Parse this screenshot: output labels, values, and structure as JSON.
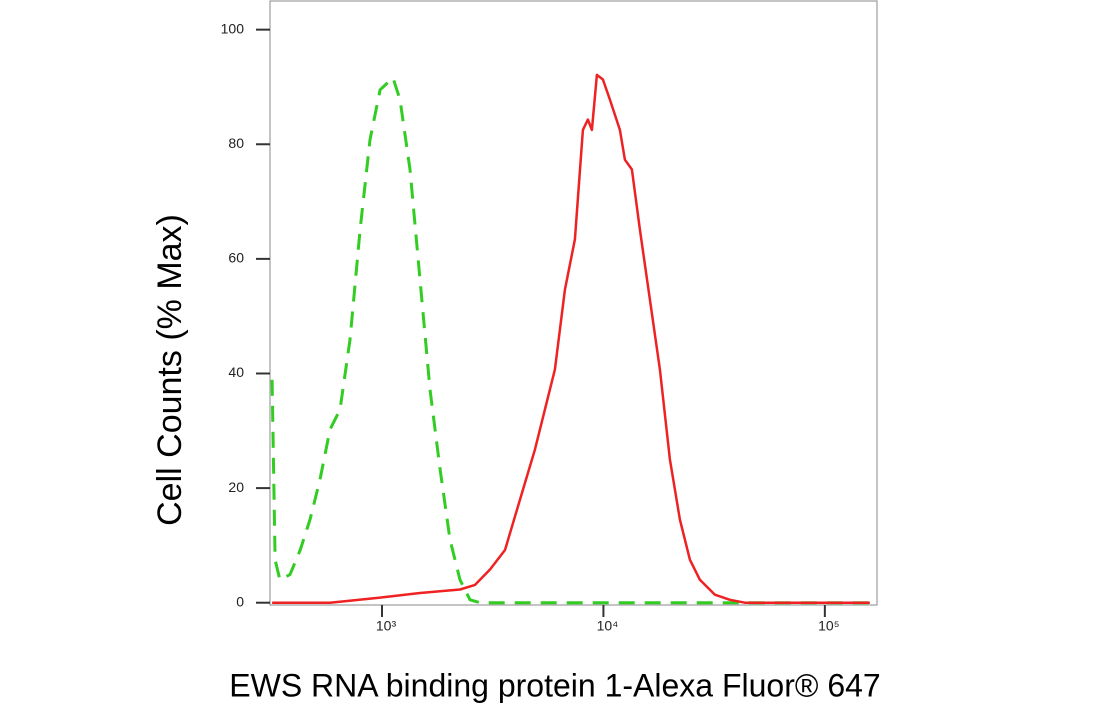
{
  "chart_data": {
    "type": "line",
    "xlabel": "EWS RNA binding protein 1-Alexa Fluor® 647",
    "ylabel": "Cell Counts (% Max)",
    "xscale": "log",
    "xlim": [
      312,
      172000
    ],
    "ylim": [
      -0.4,
      105
    ],
    "xticks": [
      {
        "value": 1000,
        "label": "10³"
      },
      {
        "value": 10000,
        "label": "10⁴"
      },
      {
        "value": 100000,
        "label": "10⁵"
      }
    ],
    "yticks": [
      0,
      20,
      40,
      60,
      80,
      100
    ],
    "series": [
      {
        "color": "#33cc22",
        "dash": true,
        "x": [
          319,
          329,
          346,
          384,
          427,
          473,
          525,
          582,
          646,
          717,
          796,
          883,
          980,
          1121,
          1206,
          1338,
          1484,
          1647,
          1827,
          2028,
          2250,
          2497,
          2770,
          159600
        ],
        "values": [
          38.9,
          7.5,
          4.0,
          4.9,
          9.2,
          14.5,
          21.5,
          30.2,
          33.7,
          45.9,
          65.1,
          80.8,
          89.5,
          91.6,
          87.8,
          75.6,
          56.4,
          37.2,
          23.4,
          11.0,
          4.0,
          0.5,
          0,
          0
        ]
      },
      {
        "color": "#ee2222",
        "dash": false,
        "x": [
          319,
          582,
          980,
          1484,
          2250,
          2630,
          3074,
          3592,
          4198,
          4905,
          5443,
          6040,
          6702,
          7436,
          8081,
          8511,
          8873,
          9348,
          9947,
          10697,
          11869,
          12504,
          13452,
          14617,
          16218,
          17994,
          19966,
          22153,
          24580,
          27273,
          31870,
          37245,
          43527,
          159600
        ],
        "values": [
          0,
          0,
          0.9,
          1.7,
          2.3,
          3.1,
          5.8,
          9.2,
          18.0,
          26.7,
          33.7,
          40.7,
          54.6,
          63.4,
          82.5,
          84.3,
          82.5,
          92.1,
          91.3,
          87.8,
          82.5,
          77.3,
          75.6,
          65.1,
          52.9,
          40.7,
          25.0,
          14.5,
          7.5,
          4.0,
          1.4,
          0.5,
          0,
          0
        ]
      }
    ]
  }
}
